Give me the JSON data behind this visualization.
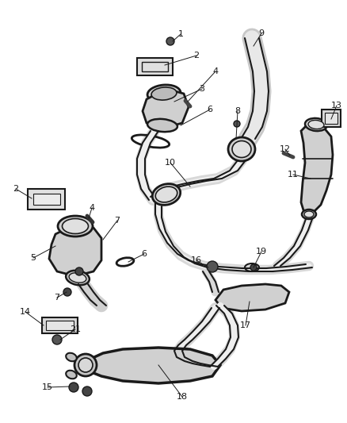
{
  "background_color": "#ffffff",
  "line_color": "#1a1a1a",
  "text_color": "#1a1a1a",
  "fig_width": 4.38,
  "fig_height": 5.33,
  "dpi": 100
}
